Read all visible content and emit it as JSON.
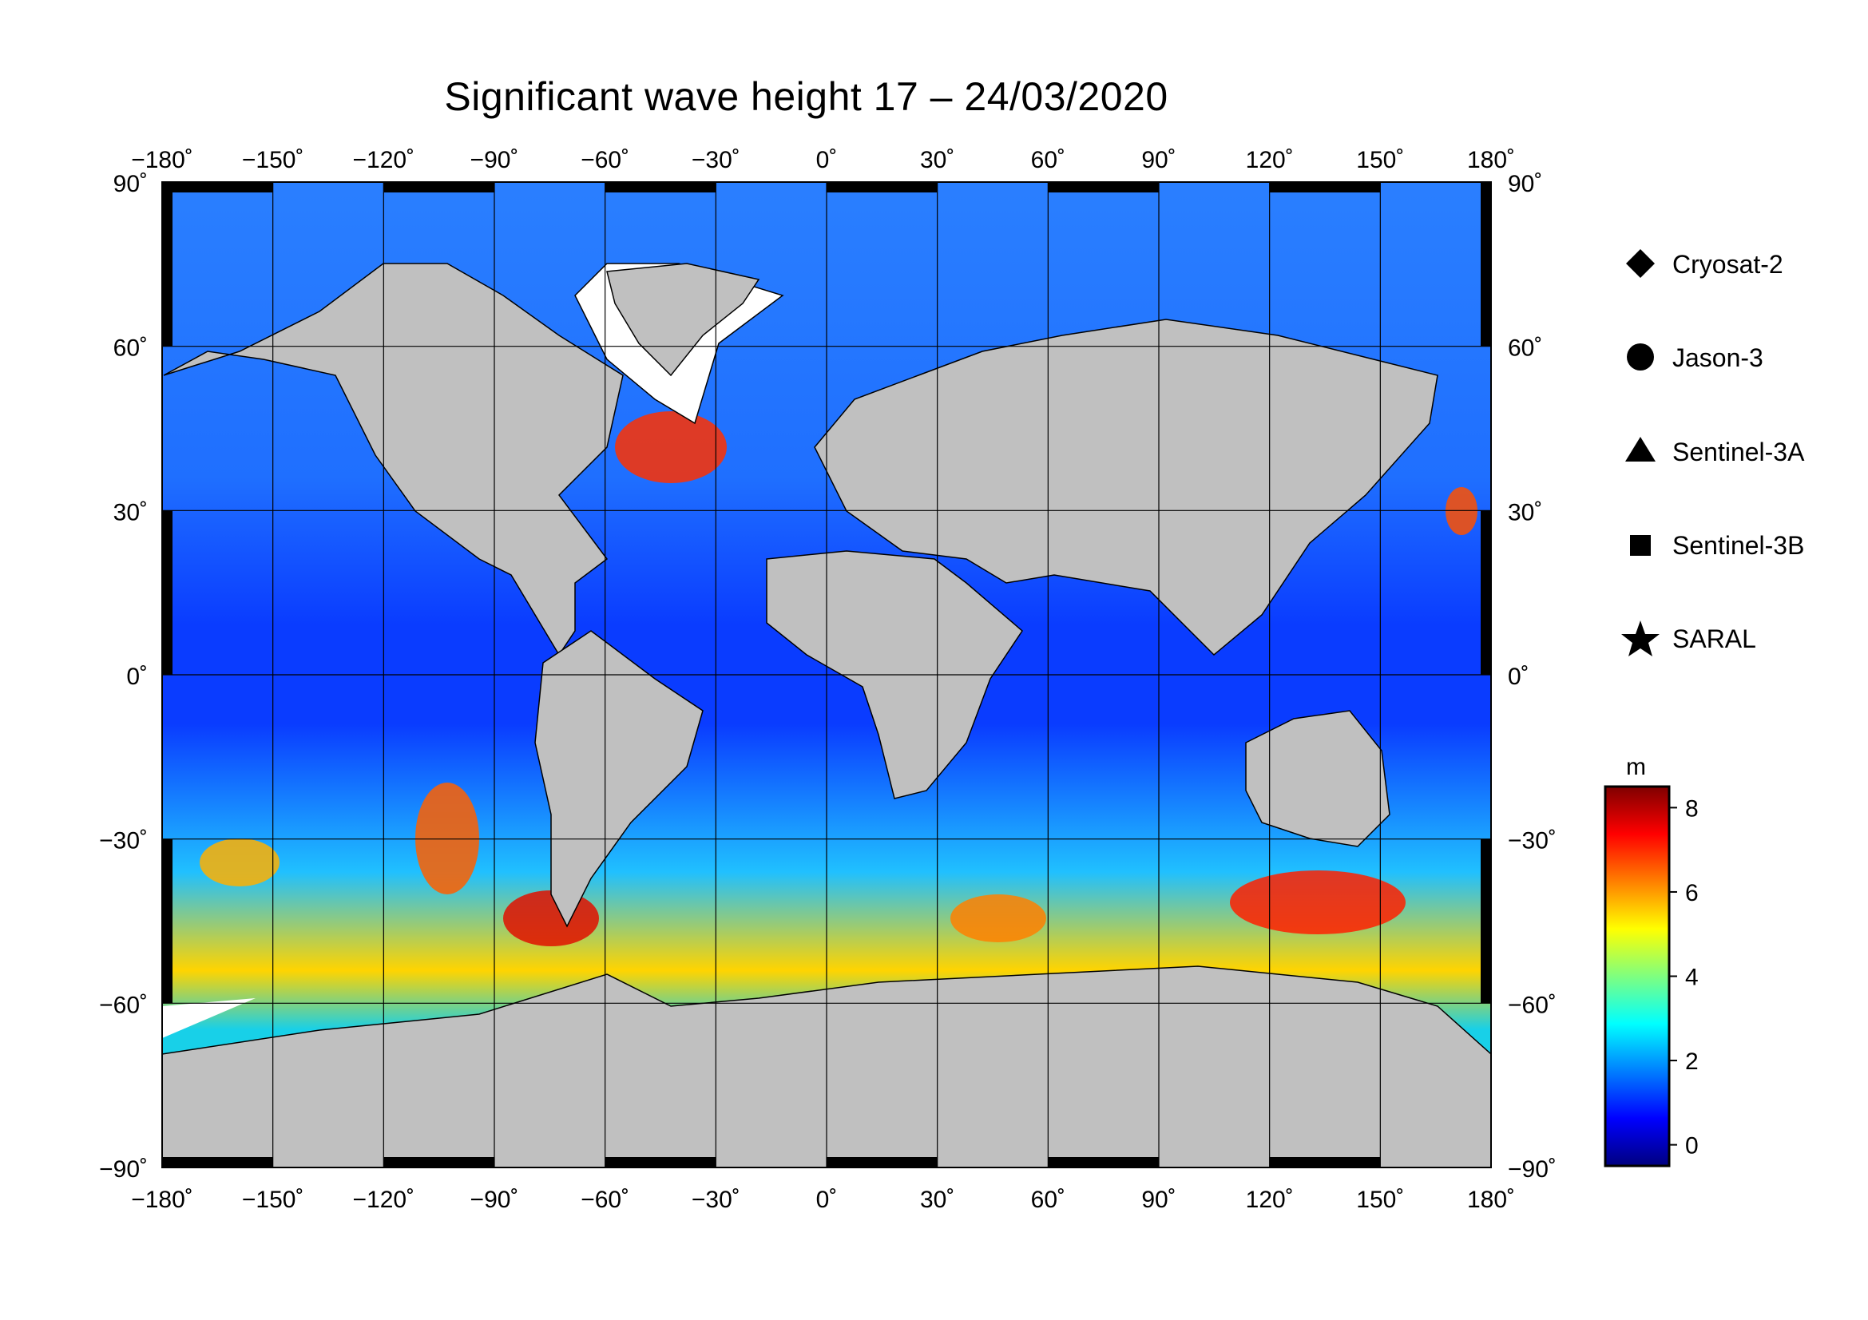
{
  "title": "Significant wave height 17 – 24/03/2020",
  "map": {
    "lon_ticks": [
      "−180˚",
      "−150˚",
      "−120˚",
      "−90˚",
      "−60˚",
      "−30˚",
      "0˚",
      "30˚",
      "60˚",
      "90˚",
      "120˚",
      "150˚",
      "180˚"
    ],
    "lat_ticks_left": [
      "90˚",
      "60˚",
      "30˚",
      "0˚",
      "−30˚",
      "−60˚",
      "−90˚"
    ],
    "lat_ticks_right": [
      "90˚",
      "60˚",
      "30˚",
      "0˚",
      "−30˚",
      "−60˚",
      "−90˚"
    ],
    "lon_range": [
      -180,
      180
    ],
    "lat_range": [
      -90,
      90
    ],
    "grid": true,
    "land_color": "#c0c0c0",
    "ice_color": "#ffffff"
  },
  "legend": {
    "placement": "right",
    "items": [
      {
        "label": "Cryosat-2",
        "icon": "diamond-icon"
      },
      {
        "label": "Jason-3",
        "icon": "circle-icon"
      },
      {
        "label": "Sentinel-3A",
        "icon": "triangle-icon"
      },
      {
        "label": "Sentinel-3B",
        "icon": "square-icon"
      },
      {
        "label": "SARAL",
        "icon": "star-icon"
      }
    ]
  },
  "colorbar": {
    "unit": "m",
    "ticks": [
      "8",
      "6",
      "4",
      "2",
      "0"
    ],
    "range": [
      -0.5,
      8.5
    ],
    "colormap": [
      "#00007f",
      "#0000ff",
      "#007fff",
      "#00ffff",
      "#7fff7f",
      "#ffff00",
      "#ff7f00",
      "#ff0000",
      "#7f0000"
    ]
  }
}
